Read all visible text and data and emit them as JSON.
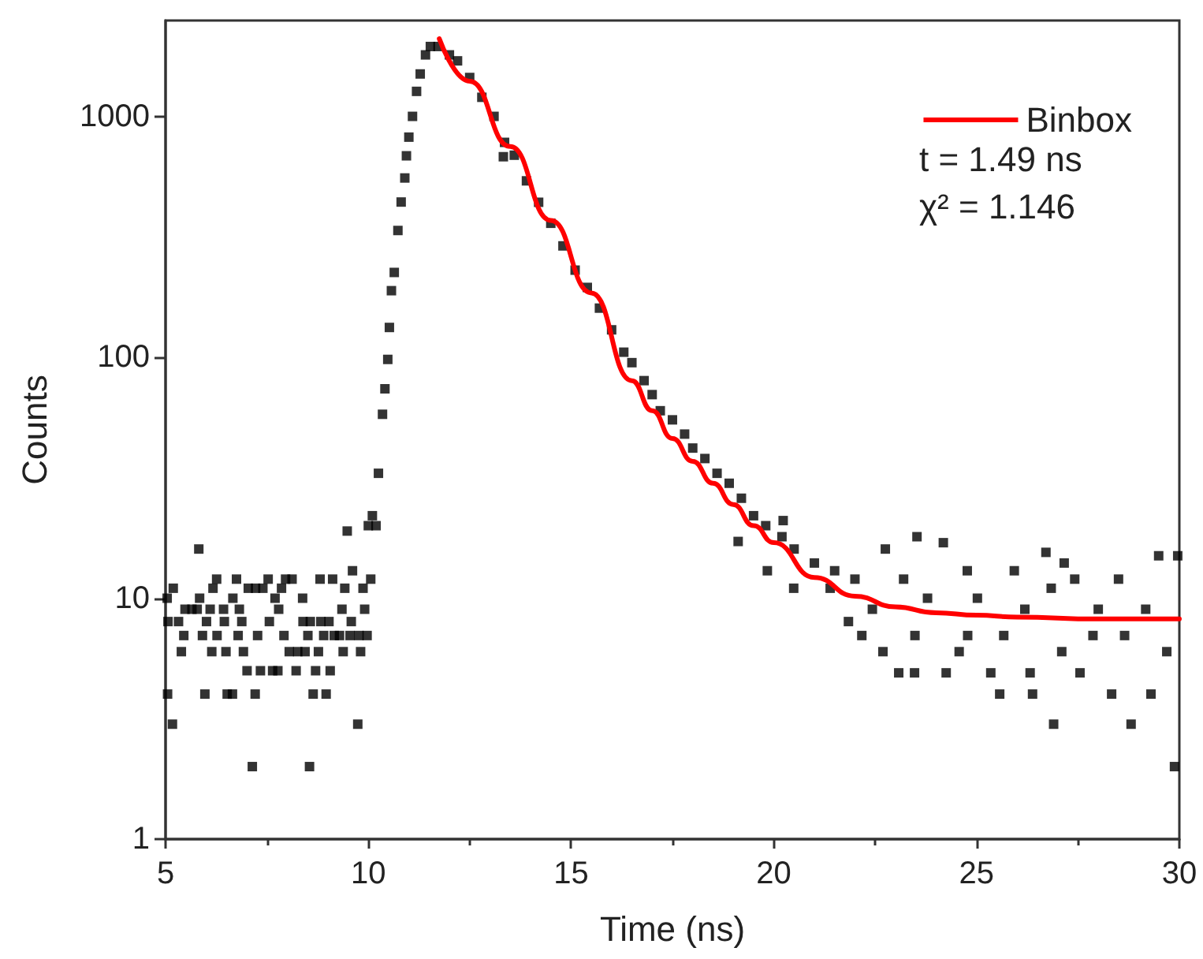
{
  "chart_data": {
    "type": "scatter",
    "xlabel": "Time (ns)",
    "ylabel": "Counts",
    "log": "y",
    "xlim": [
      5,
      30
    ],
    "xticks": [
      5,
      10,
      15,
      20,
      25,
      30
    ],
    "ylim": [
      1,
      2500
    ],
    "yticks": [
      1,
      10,
      100,
      1000
    ],
    "grid": false,
    "legend": "top right",
    "annotations": [
      "t = 1.49 ns",
      "χ² = 1.146"
    ],
    "series": [
      {
        "color": "#000000",
        "marker": "square",
        "x": [
          5.04,
          5.19,
          5.05,
          5.17,
          5.06,
          5.32,
          5.39,
          5.45,
          5.48,
          5.65,
          5.78,
          5.82,
          5.84,
          5.91,
          5.97,
          6.01,
          6.1,
          6.14,
          6.17,
          6.26,
          6.27,
          6.43,
          6.45,
          6.49,
          6.52,
          6.65,
          6.66,
          6.75,
          6.79,
          6.82,
          6.88,
          6.92,
          7.01,
          7.04,
          7.14,
          7.21,
          7.22,
          7.27,
          7.34,
          7.4,
          7.53,
          7.56,
          7.64,
          7.7,
          7.77,
          7.79,
          7.86,
          7.92,
          7.96,
          8.05,
          8.12,
          8.22,
          8.26,
          8.38,
          8.39,
          8.44,
          8.51,
          8.55,
          8.57,
          8.64,
          8.7,
          8.77,
          8.81,
          8.83,
          8.9,
          8.96,
          9.03,
          9.06,
          9.12,
          9.16,
          9.29,
          9.35,
          9.38,
          9.42,
          9.48,
          9.55,
          9.58,
          9.61,
          9.74,
          9.77,
          9.81,
          9.87,
          9.91,
          9.97,
          10.0,
          10.06,
          10.1,
          10.19,
          10.25,
          10.35,
          10.41,
          10.48,
          10.52,
          10.57,
          10.64,
          10.73,
          10.81,
          10.9,
          10.94,
          11.0,
          11.09,
          11.19,
          11.28,
          11.41,
          11.53,
          11.72,
          12.0,
          12.2,
          12.5,
          12.8,
          13.1,
          13.33,
          13.36,
          13.6,
          13.9,
          14.2,
          14.5,
          14.8,
          15.1,
          15.4,
          15.7,
          16.0,
          16.3,
          16.5,
          16.8,
          17.0,
          17.2,
          17.5,
          17.8,
          18.0,
          18.3,
          18.6,
          18.9,
          19.12,
          19.2,
          19.5,
          19.84,
          19.8,
          20.23,
          20.2,
          20.49,
          20.5,
          21.0,
          21.39,
          21.5,
          21.84,
          22.0,
          22.17,
          22.43,
          22.69,
          22.75,
          23.08,
          23.2,
          23.47,
          23.48,
          23.53,
          23.79,
          24.18,
          24.25,
          24.57,
          24.77,
          24.78,
          25.02,
          25.35,
          25.57,
          25.67,
          25.93,
          26.19,
          26.32,
          26.38,
          26.71,
          26.84,
          26.9,
          27.1,
          27.16,
          27.42,
          27.55,
          27.87,
          28.0,
          28.33,
          28.5,
          28.65,
          28.81,
          29.17,
          29.3,
          29.49,
          29.69,
          29.88,
          29.96
        ],
        "values": [
          10,
          11,
          4,
          3,
          8,
          8,
          6,
          7,
          9,
          9,
          9,
          16,
          10,
          7,
          4,
          8,
          9,
          6,
          11,
          12,
          7,
          9,
          8,
          6,
          4,
          4,
          10,
          12,
          7,
          9,
          8,
          6,
          5,
          11,
          2,
          4,
          11,
          7,
          5,
          11,
          12,
          8,
          5,
          10,
          5,
          9,
          11,
          7,
          12,
          6,
          12,
          5,
          6,
          10,
          8,
          6,
          7,
          2,
          8,
          4,
          5,
          6,
          12,
          8,
          7,
          4,
          8,
          5,
          12,
          7,
          7,
          9,
          6,
          11,
          19,
          7,
          8,
          13,
          3,
          7,
          6,
          11,
          9,
          7,
          20,
          12,
          22,
          20,
          33,
          58,
          74,
          98,
          133,
          189,
          225,
          336,
          441,
          555,
          686,
          820,
          1000,
          1270,
          1500,
          1800,
          1950,
          1950,
          1800,
          1700,
          1450,
          1200,
          1000,
          680,
          780,
          690,
          540,
          440,
          360,
          290,
          230,
          195,
          160,
          130,
          105,
          95,
          80,
          70,
          60,
          55,
          48,
          42,
          38,
          33,
          30,
          17.2,
          26,
          22,
          13,
          20,
          21,
          18,
          11,
          16,
          14,
          11,
          13,
          8,
          12,
          7,
          9,
          6,
          16,
          4.9,
          12,
          4.9,
          7,
          18,
          10,
          17,
          4.9,
          6,
          13,
          7,
          10,
          4.9,
          4,
          7,
          13,
          9,
          4.9,
          4,
          15.5,
          11,
          3,
          6,
          14,
          12,
          4.9,
          7,
          9,
          4,
          12,
          7,
          3,
          9,
          4,
          15,
          6,
          2,
          15
        ]
      },
      {
        "type": "line",
        "name": "Binbox",
        "color": "#ff0000",
        "marker": "none",
        "x": [
          11.75,
          12.5,
          13.5,
          14.5,
          15.5,
          16.5,
          17.0,
          17.5,
          18.0,
          18.5,
          19.0,
          19.5,
          20.0,
          21.0,
          22.0,
          23.0,
          24.0,
          25.0,
          26.0,
          28.0,
          30.0
        ],
        "values": [
          2100,
          1400,
          750,
          370,
          185,
          80,
          60,
          46,
          37,
          30,
          24.5,
          20,
          17,
          12.2,
          10.2,
          9.2,
          8.7,
          8.5,
          8.35,
          8.2,
          8.2
        ]
      }
    ]
  }
}
